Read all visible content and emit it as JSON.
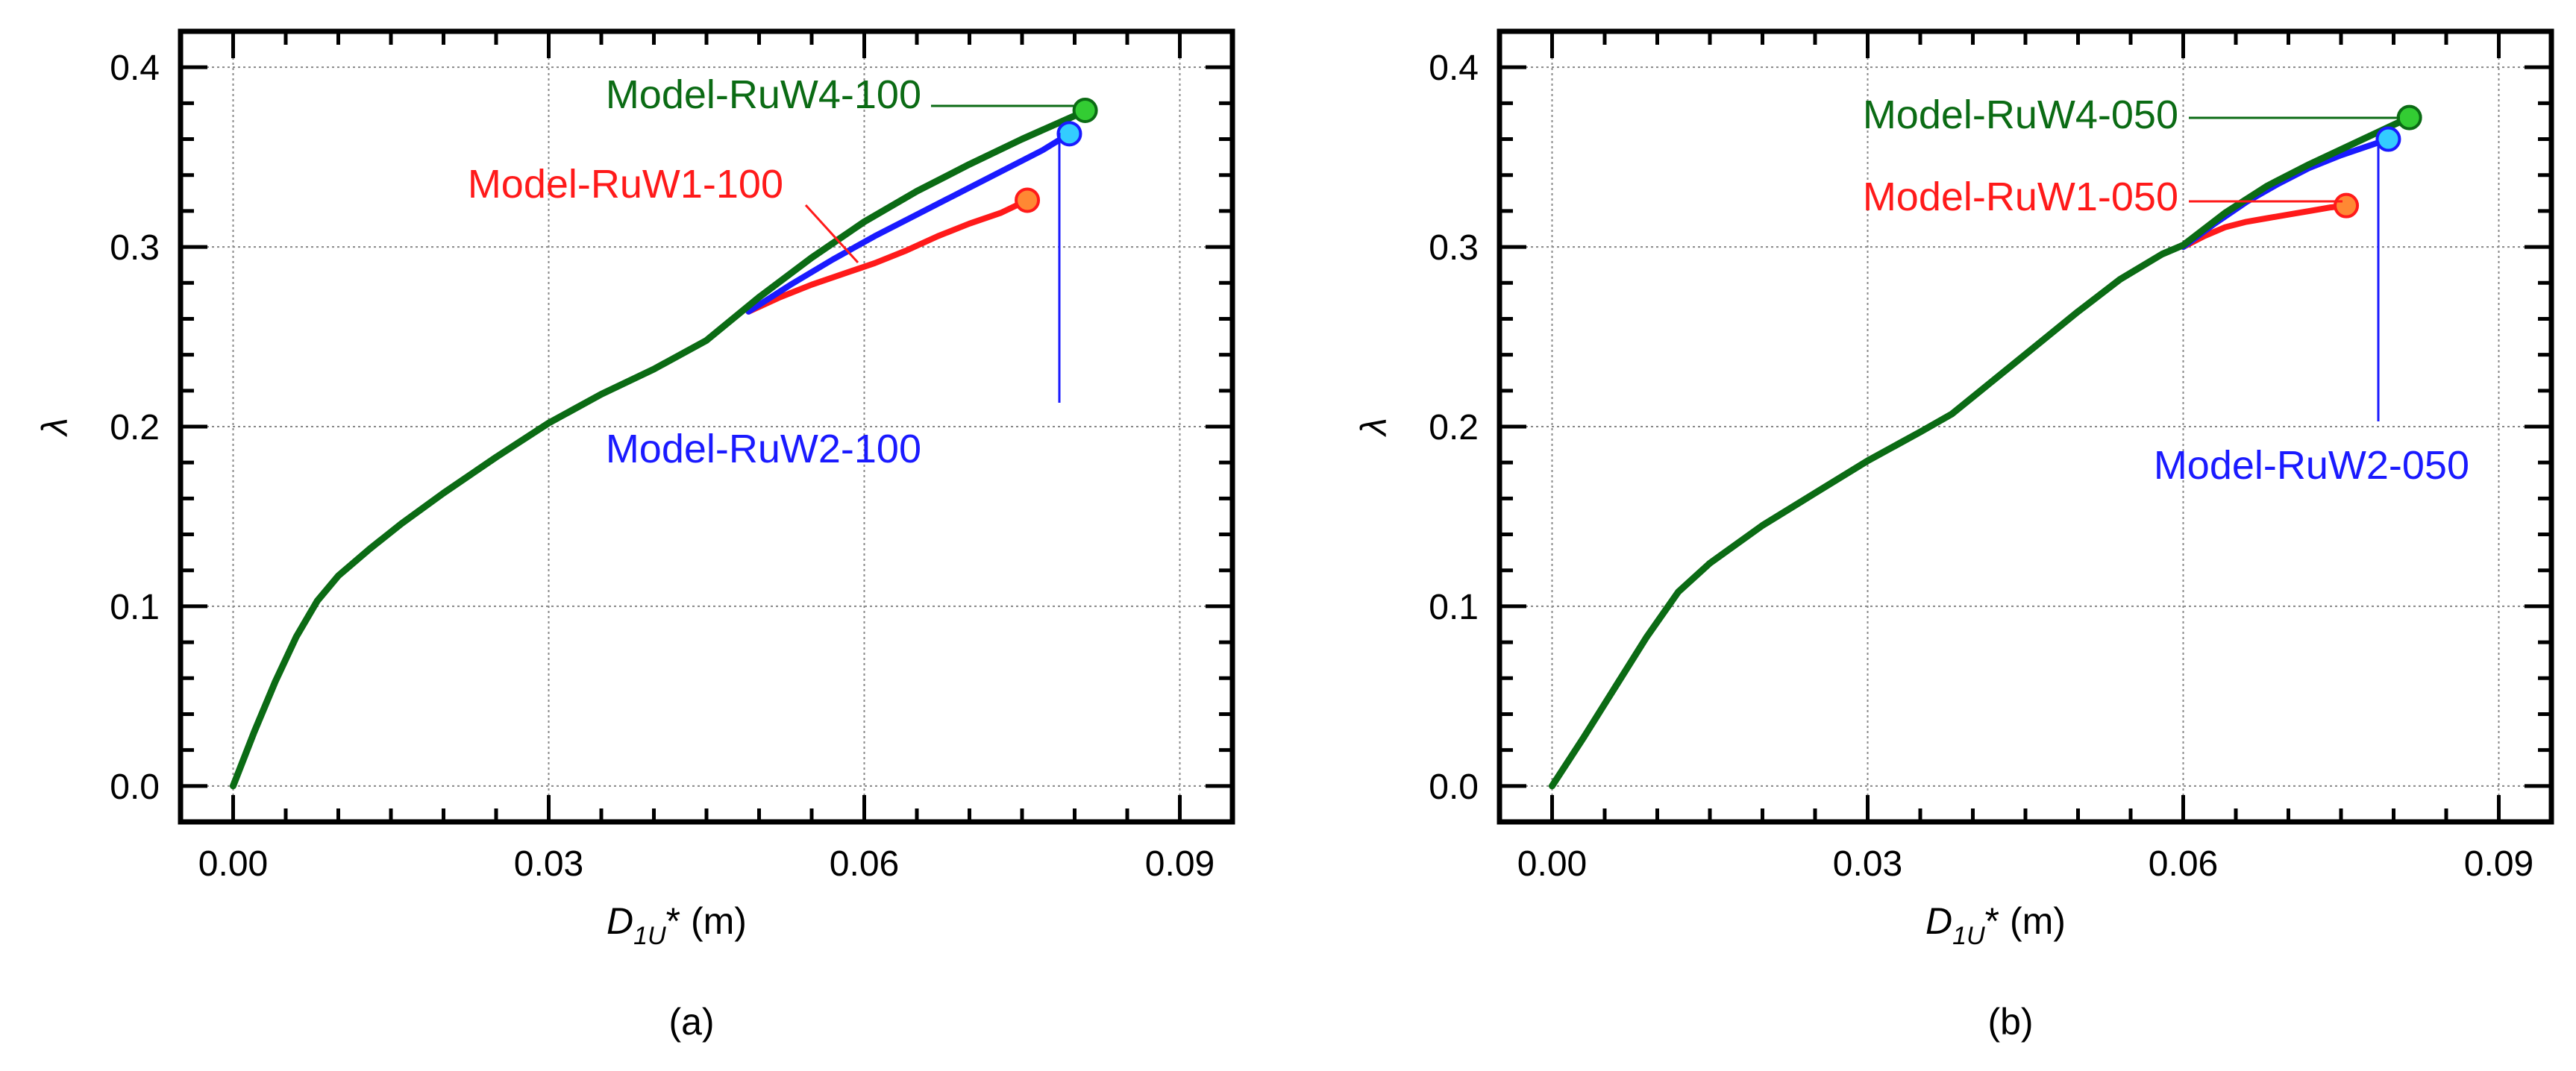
{
  "colors": {
    "model_w4": "#0b6b14",
    "model_w2": "#1a1aff",
    "model_w1": "#ff1a1a",
    "marker_w4": "#33cc33",
    "marker_w2": "#33ccff",
    "marker_w1": "#ff8833",
    "axis": "#000000",
    "grid": "#888888"
  },
  "chart_data": [
    {
      "type": "line",
      "panel_label": "(a)",
      "xlabel": {
        "main": "D",
        "sub": "1U",
        "rest": "* (m)"
      },
      "ylabel": "λ",
      "xlim": [
        -0.005,
        0.095
      ],
      "ylim": [
        -0.02,
        0.42
      ],
      "xticks": [
        0.0,
        0.03,
        0.06,
        0.09
      ],
      "xtick_labels": [
        "0.00",
        "0.03",
        "0.06",
        "0.09"
      ],
      "yticks": [
        0.0,
        0.1,
        0.2,
        0.3,
        0.4
      ],
      "ytick_labels": [
        "0.0",
        "0.1",
        "0.2",
        "0.3",
        "0.4"
      ],
      "grid": true,
      "series": [
        {
          "name": "Model-RuW1-100",
          "color": "#ff1a1a",
          "marker_color": "#ff8833",
          "x": [
            0.049,
            0.052,
            0.055,
            0.058,
            0.061,
            0.064,
            0.067,
            0.07,
            0.073,
            0.0755
          ],
          "y": [
            0.264,
            0.272,
            0.279,
            0.285,
            0.291,
            0.298,
            0.306,
            0.313,
            0.319,
            0.326
          ]
        },
        {
          "name": "Model-RuW2-100",
          "color": "#1a1aff",
          "marker_color": "#33ccff",
          "x": [
            0.049,
            0.053,
            0.057,
            0.061,
            0.065,
            0.069,
            0.073,
            0.077,
            0.0795
          ],
          "y": [
            0.264,
            0.279,
            0.293,
            0.306,
            0.318,
            0.33,
            0.342,
            0.354,
            0.363
          ]
        },
        {
          "name": "Model-RuW4-100",
          "color": "#0b6b14",
          "marker_color": "#33cc33",
          "x": [
            0.0,
            0.002,
            0.004,
            0.006,
            0.008,
            0.01,
            0.013,
            0.016,
            0.02,
            0.025,
            0.03,
            0.035,
            0.04,
            0.045,
            0.05,
            0.055,
            0.06,
            0.065,
            0.07,
            0.075,
            0.08,
            0.081
          ],
          "y": [
            0.0,
            0.03,
            0.058,
            0.083,
            0.103,
            0.117,
            0.132,
            0.146,
            0.163,
            0.183,
            0.202,
            0.218,
            0.232,
            0.248,
            0.272,
            0.294,
            0.314,
            0.331,
            0.346,
            0.36,
            0.373,
            0.376
          ]
        }
      ],
      "annotations": [
        {
          "text": "Model-RuW4-100",
          "series": 2
        },
        {
          "text": "Model-RuW1-100",
          "series": 0
        },
        {
          "text": "Model-RuW2-100",
          "series": 1
        }
      ]
    },
    {
      "type": "line",
      "panel_label": "(b)",
      "xlabel": {
        "main": "D",
        "sub": "1U",
        "rest": "* (m)"
      },
      "ylabel": "λ",
      "xlim": [
        -0.005,
        0.095
      ],
      "ylim": [
        -0.02,
        0.42
      ],
      "xticks": [
        0.0,
        0.03,
        0.06,
        0.09
      ],
      "xtick_labels": [
        "0.00",
        "0.03",
        "0.06",
        "0.09"
      ],
      "yticks": [
        0.0,
        0.1,
        0.2,
        0.3,
        0.4
      ],
      "ytick_labels": [
        "0.0",
        "0.1",
        "0.2",
        "0.3",
        "0.4"
      ],
      "grid": true,
      "series": [
        {
          "name": "Model-RuW1-050",
          "color": "#ff1a1a",
          "marker_color": "#ff8833",
          "x": [
            0.06,
            0.062,
            0.064,
            0.066,
            0.068,
            0.07,
            0.072,
            0.074,
            0.0755
          ],
          "y": [
            0.3,
            0.306,
            0.311,
            0.314,
            0.316,
            0.318,
            0.32,
            0.322,
            0.323
          ]
        },
        {
          "name": "Model-RuW2-050",
          "color": "#1a1aff",
          "marker_color": "#33ccff",
          "x": [
            0.06,
            0.063,
            0.066,
            0.069,
            0.072,
            0.075,
            0.078,
            0.0795
          ],
          "y": [
            0.3,
            0.313,
            0.325,
            0.335,
            0.344,
            0.351,
            0.357,
            0.36
          ]
        },
        {
          "name": "Model-RuW4-050",
          "color": "#0b6b14",
          "marker_color": "#33cc33",
          "x": [
            0.0,
            0.003,
            0.006,
            0.009,
            0.012,
            0.015,
            0.02,
            0.025,
            0.03,
            0.035,
            0.038,
            0.042,
            0.046,
            0.05,
            0.054,
            0.058,
            0.06,
            0.064,
            0.068,
            0.072,
            0.076,
            0.08,
            0.0815
          ],
          "y": [
            0.0,
            0.027,
            0.055,
            0.083,
            0.108,
            0.124,
            0.145,
            0.163,
            0.181,
            0.197,
            0.207,
            0.226,
            0.245,
            0.264,
            0.282,
            0.296,
            0.301,
            0.319,
            0.334,
            0.346,
            0.357,
            0.368,
            0.372
          ]
        }
      ],
      "annotations": [
        {
          "text": "Model-RuW4-050",
          "series": 2
        },
        {
          "text": "Model-RuW1-050",
          "series": 0
        },
        {
          "text": "Model-RuW2-050",
          "series": 1
        }
      ]
    }
  ]
}
